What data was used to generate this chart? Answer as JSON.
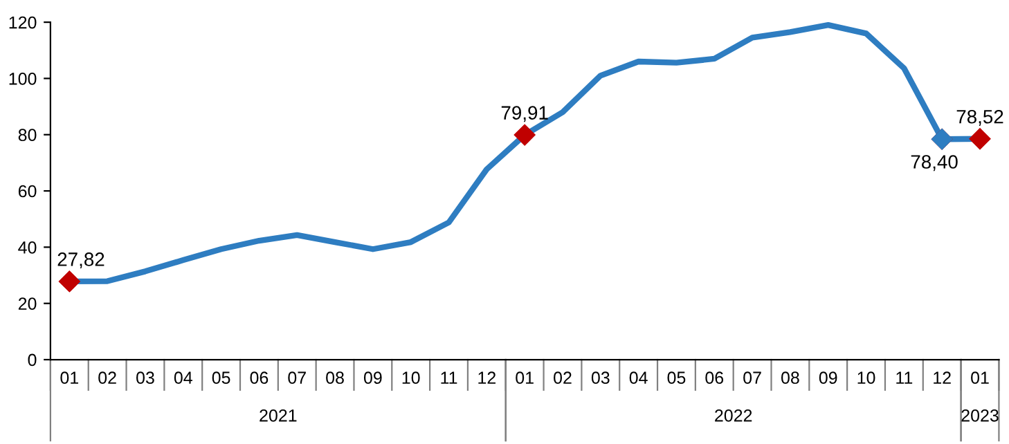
{
  "chart_data": {
    "type": "line",
    "categories": [
      "01",
      "02",
      "03",
      "04",
      "05",
      "06",
      "07",
      "08",
      "09",
      "10",
      "11",
      "12",
      "01",
      "02",
      "03",
      "04",
      "05",
      "06",
      "07",
      "08",
      "09",
      "10",
      "11",
      "12",
      "01"
    ],
    "series": [
      {
        "color": "#2e7dc1",
        "values": [
          27.82,
          27.9,
          31.4,
          35.4,
          39.3,
          42.3,
          44.3,
          41.8,
          39.3,
          41.8,
          48.8,
          67.7,
          79.91,
          88,
          101,
          106,
          105.6,
          107,
          114.5,
          116.5,
          119,
          116,
          103.6,
          78.4,
          78.52
        ],
        "colors": [
          "#c00000",
          null,
          null,
          null,
          null,
          null,
          null,
          null,
          null,
          null,
          null,
          null,
          "#c00000",
          null,
          null,
          null,
          null,
          null,
          null,
          null,
          null,
          null,
          null,
          "#2e7dc1",
          "#c00000"
        ],
        "value_labels": [
          "27,82",
          null,
          null,
          null,
          null,
          null,
          null,
          null,
          null,
          null,
          null,
          null,
          "79,91",
          null,
          null,
          null,
          null,
          null,
          null,
          null,
          null,
          null,
          null,
          "78,40",
          "78,52"
        ]
      }
    ],
    "line_style": "solid",
    "ylim": [
      0,
      120
    ],
    "yticks": [
      0,
      20,
      40,
      60,
      80,
      100,
      120
    ],
    "grid": false,
    "legend": false,
    "annotations": [
      "2021",
      "2022",
      "2023"
    ]
  }
}
